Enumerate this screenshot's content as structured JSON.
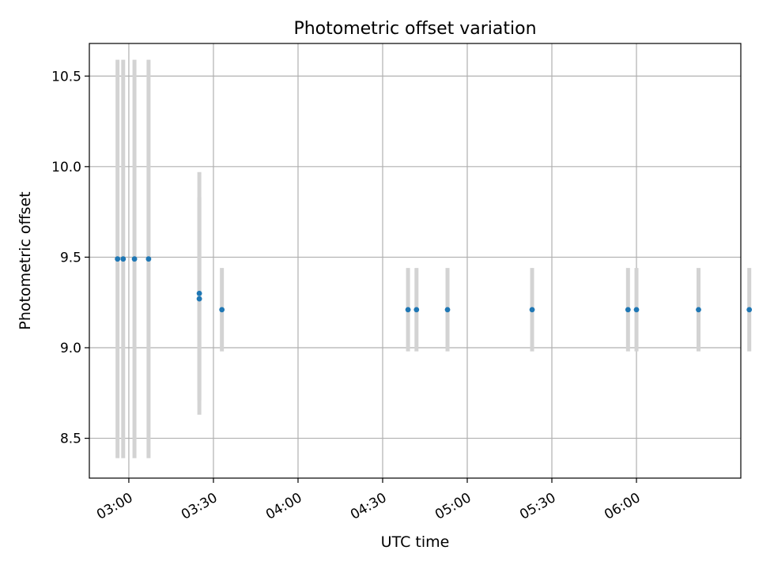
{
  "chart_data": {
    "type": "scatter",
    "title": "Photometric offset variation",
    "xlabel": "UTC time",
    "ylabel": "Photometric offset",
    "x_ticks": [
      "03:00",
      "03:30",
      "04:00",
      "04:30",
      "05:00",
      "05:30",
      "06:00"
    ],
    "y_ticks": [
      "8.5",
      "9.0",
      "9.5",
      "10.0",
      "10.5"
    ],
    "xlim": [
      "02:46",
      "06:37"
    ],
    "ylim": [
      8.28,
      10.68
    ],
    "grid": true,
    "legend": "none",
    "errorbars": true,
    "colors": {
      "point": "#1f77b4",
      "errorbar": "#d3d3d3",
      "grid": "#b0b0b0"
    },
    "points": [
      {
        "x": "02:56",
        "y": 9.49,
        "err": 1.1
      },
      {
        "x": "02:58",
        "y": 9.49,
        "err": 1.1
      },
      {
        "x": "03:02",
        "y": 9.49,
        "err": 1.1
      },
      {
        "x": "03:07",
        "y": 9.49,
        "err": 1.1
      },
      {
        "x": "03:25",
        "y": 9.3,
        "err": 0.67
      },
      {
        "x": "03:25",
        "y": 9.27,
        "err": 0.56
      },
      {
        "x": "03:33",
        "y": 9.21,
        "err": 0.23
      },
      {
        "x": "04:39",
        "y": 9.21,
        "err": 0.23
      },
      {
        "x": "04:42",
        "y": 9.21,
        "err": 0.23
      },
      {
        "x": "04:53",
        "y": 9.21,
        "err": 0.23
      },
      {
        "x": "05:23",
        "y": 9.21,
        "err": 0.23
      },
      {
        "x": "05:57",
        "y": 9.21,
        "err": 0.23
      },
      {
        "x": "06:00",
        "y": 9.21,
        "err": 0.23
      },
      {
        "x": "06:22",
        "y": 9.21,
        "err": 0.23
      },
      {
        "x": "06:40",
        "y": 9.21,
        "err": 0.23
      }
    ]
  }
}
